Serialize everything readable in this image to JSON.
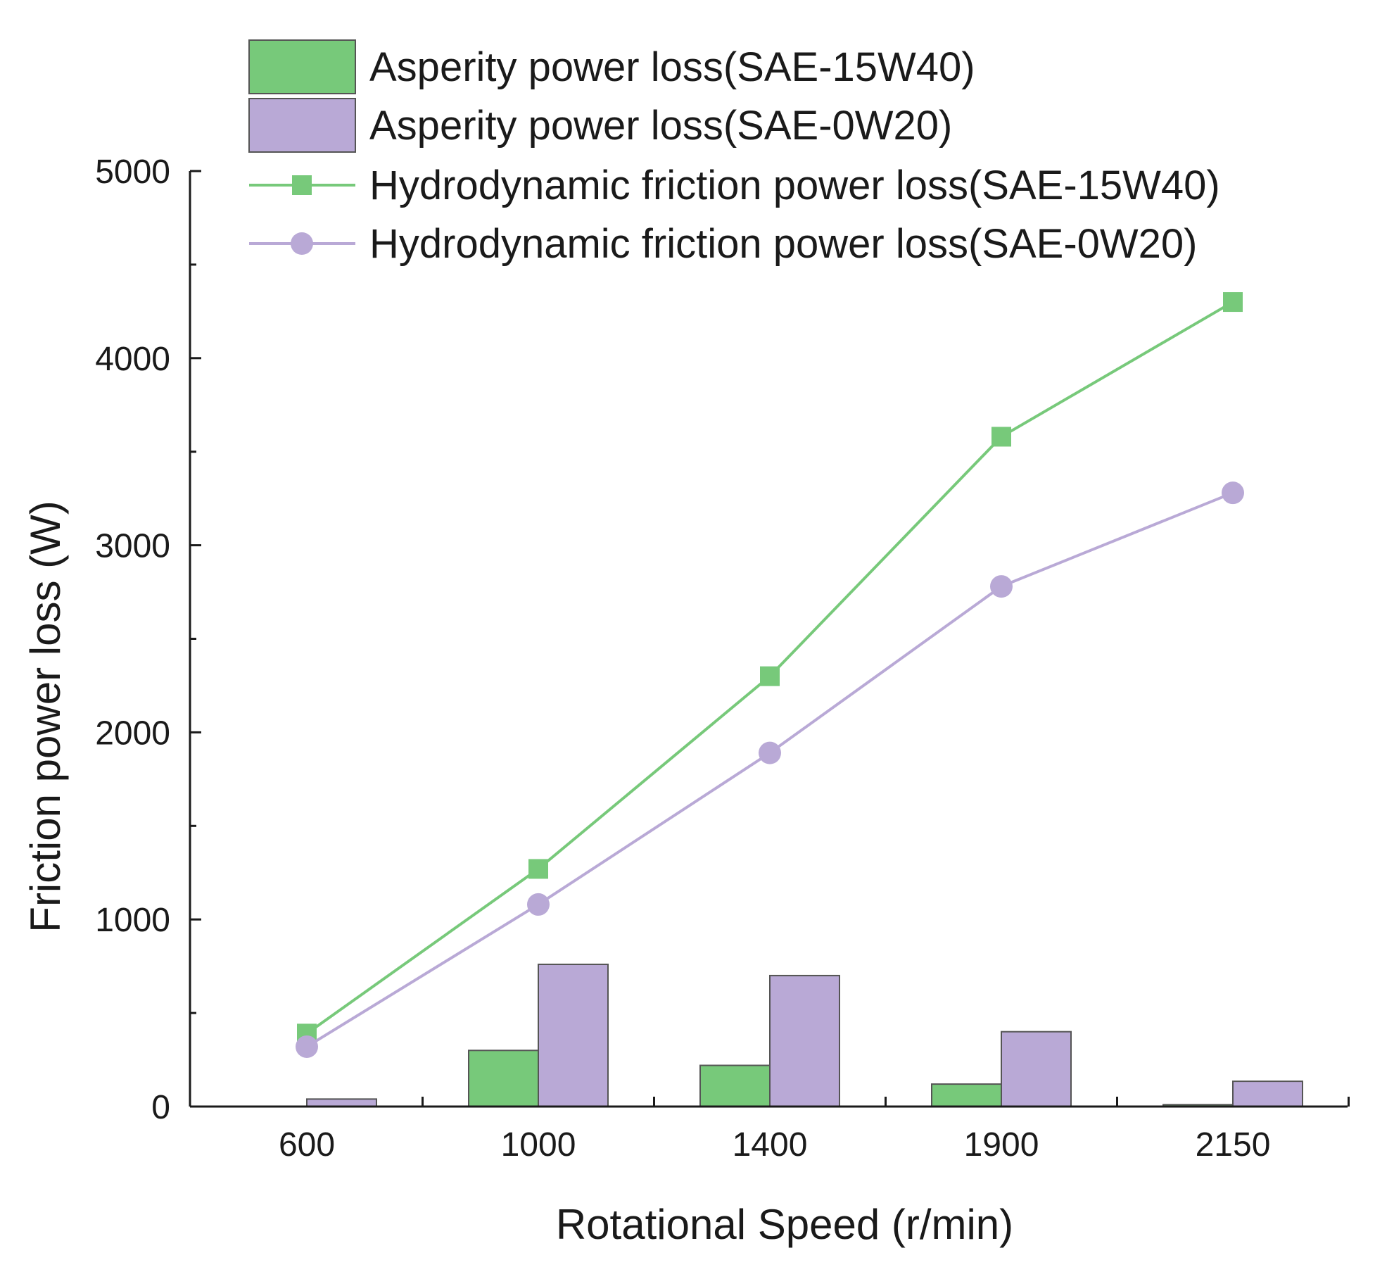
{
  "chart_data": {
    "type": "bar+line",
    "title": "",
    "xlabel": "Rotational Speed (r/min)",
    "ylabel": "Friction power loss (W)",
    "categories": [
      "600",
      "1000",
      "1400",
      "1900",
      "2150"
    ],
    "ylim": [
      0,
      5000
    ],
    "yticks": [
      "0",
      "1000",
      "2000",
      "3000",
      "4000",
      "5000"
    ],
    "grid": false,
    "legend_position": "top",
    "series": [
      {
        "name": "Asperity power loss(SAE-15W40)",
        "kind": "bar",
        "color": "#77c97a",
        "values": [
          0,
          300,
          220,
          120,
          10
        ]
      },
      {
        "name": "Asperity power loss(SAE-0W20)",
        "kind": "bar",
        "color": "#b9a9d6",
        "values": [
          40,
          760,
          700,
          400,
          135
        ]
      },
      {
        "name": "Hydrodynamic friction power loss(SAE-15W40)",
        "kind": "line",
        "marker": "square",
        "color": "#77c97a",
        "values": [
          390,
          1270,
          2300,
          3580,
          4300
        ]
      },
      {
        "name": "Hydrodynamic friction power loss(SAE-0W20)",
        "kind": "line",
        "marker": "circle",
        "color": "#b9a9d6",
        "values": [
          320,
          1080,
          1890,
          2780,
          3280
        ]
      }
    ]
  }
}
